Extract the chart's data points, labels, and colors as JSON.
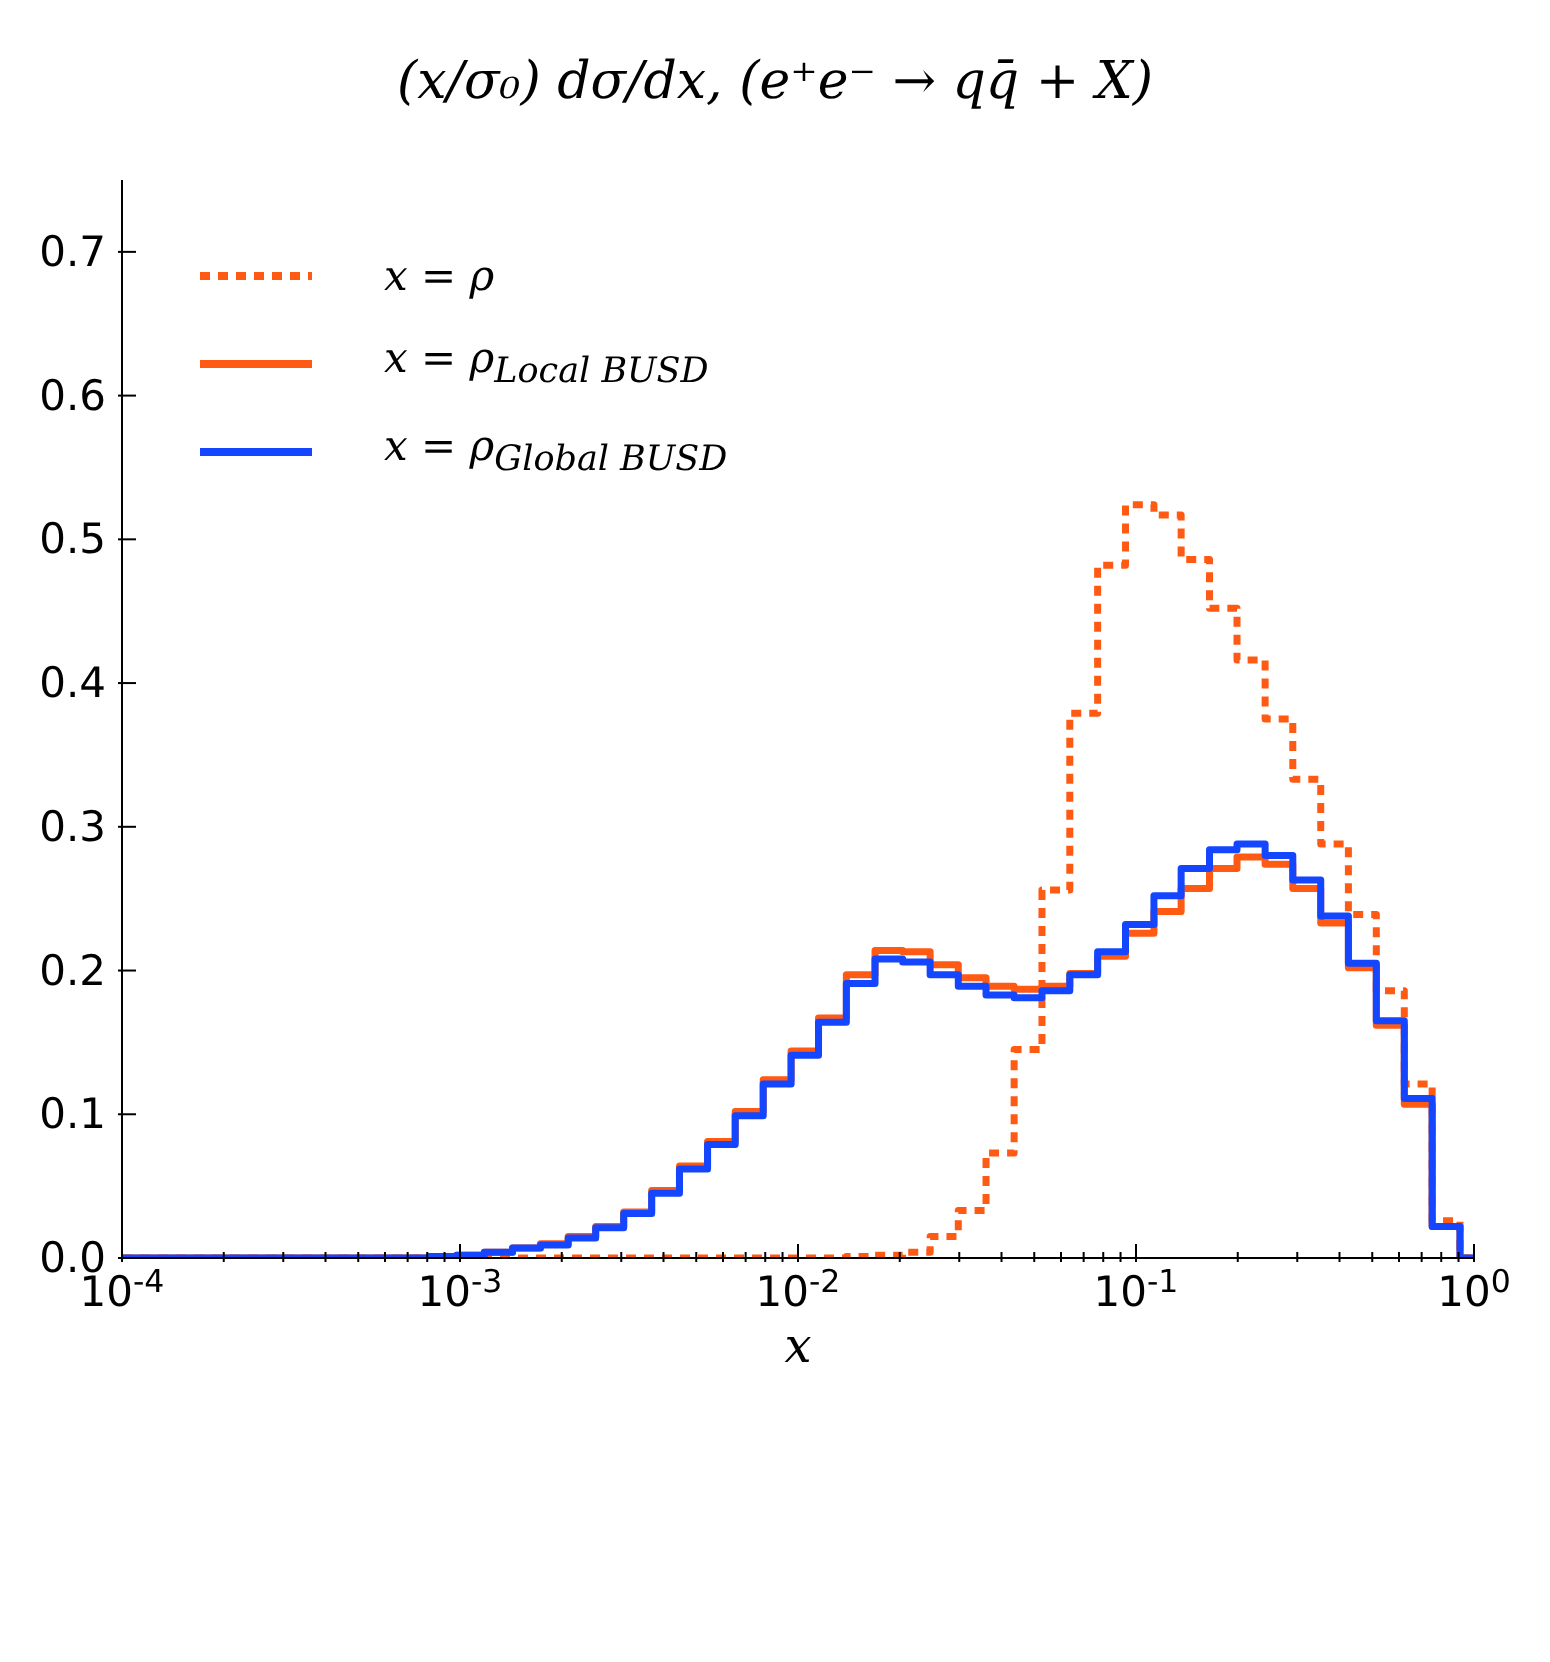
{
  "chart_data": {
    "type": "histogram",
    "title": "(x/σ₀) dσ/dx, (e⁺e⁻ → qq̄ + X)",
    "xlabel": "x",
    "log": "x",
    "bins": [
      0.0001,
      0.000121,
      0.000146,
      0.000177,
      0.000214,
      0.000259,
      0.000313,
      0.000378,
      0.000457,
      0.000553,
      0.000668,
      0.000808,
      0.000977,
      0.00118,
      0.00143,
      0.00173,
      0.00209,
      0.00252,
      0.00305,
      0.00369,
      0.00446,
      0.0054,
      0.00652,
      0.00789,
      0.00954,
      0.0115,
      0.0139,
      0.0169,
      0.0204,
      0.0246,
      0.0298,
      0.036,
      0.0436,
      0.0527,
      0.0637,
      0.077,
      0.0931,
      0.113,
      0.136,
      0.165,
      0.199,
      0.241,
      0.291,
      0.352,
      0.425,
      0.514,
      0.622,
      0.752,
      0.909,
      1
    ],
    "series": [
      {
        "name": "x = ρ",
        "color": "#ff5a14",
        "line_style": "dotted",
        "values": [
          0,
          0,
          0,
          0,
          0,
          0,
          0,
          0,
          0,
          0,
          0,
          0,
          0,
          0,
          0,
          0,
          0,
          0,
          0,
          0,
          0,
          0,
          0,
          0,
          0,
          0,
          0.001,
          0.002,
          0.004,
          0.015,
          0.033,
          0.073,
          0.145,
          0.256,
          0.379,
          0.482,
          0.524,
          0.517,
          0.486,
          0.452,
          0.416,
          0.375,
          0.333,
          0.288,
          0.239,
          0.186,
          0.121,
          0.026,
          0
        ]
      },
      {
        "name": "x = ρ$_{Local BUSD}$",
        "color": "#ff5a14",
        "line_style": "solid",
        "values": [
          0,
          0,
          0,
          0,
          0,
          0,
          0,
          0,
          0,
          0,
          0,
          0.001,
          0.002,
          0.004,
          0.007,
          0.01,
          0.015,
          0.022,
          0.032,
          0.047,
          0.064,
          0.081,
          0.102,
          0.124,
          0.144,
          0.167,
          0.197,
          0.214,
          0.213,
          0.204,
          0.195,
          0.189,
          0.187,
          0.189,
          0.198,
          0.21,
          0.226,
          0.241,
          0.257,
          0.271,
          0.279,
          0.274,
          0.257,
          0.233,
          0.202,
          0.162,
          0.107,
          0.022,
          0
        ]
      },
      {
        "name": "x = ρ$_{Global BUSD}$",
        "color": "#1446ff",
        "line_style": "solid",
        "values": [
          0,
          0,
          0,
          0,
          0,
          0,
          0,
          0,
          0,
          0,
          0,
          0.001,
          0.002,
          0.004,
          0.007,
          0.009,
          0.014,
          0.021,
          0.031,
          0.045,
          0.062,
          0.079,
          0.099,
          0.121,
          0.141,
          0.164,
          0.191,
          0.208,
          0.206,
          0.197,
          0.189,
          0.183,
          0.181,
          0.186,
          0.197,
          0.213,
          0.232,
          0.252,
          0.271,
          0.284,
          0.288,
          0.28,
          0.263,
          0.238,
          0.205,
          0.165,
          0.111,
          0.022,
          0
        ]
      }
    ],
    "xlim": [
      0.0001,
      1
    ],
    "xticks": [
      {
        "value": 0.0001,
        "label": "10$^{-4}$"
      },
      {
        "value": 0.0002,
        "label": null
      },
      {
        "value": 0.0003,
        "label": null
      },
      {
        "value": 0.0004,
        "label": null
      },
      {
        "value": 0.0005,
        "label": null
      },
      {
        "value": 0.0006,
        "label": null
      },
      {
        "value": 0.0007,
        "label": null
      },
      {
        "value": 0.0008,
        "label": null
      },
      {
        "value": 0.0009,
        "label": null
      },
      {
        "value": 0.001,
        "label": "10$^{-3}$"
      },
      {
        "value": 0.002,
        "label": null
      },
      {
        "value": 0.003,
        "label": null
      },
      {
        "value": 0.004,
        "label": null
      },
      {
        "value": 0.005,
        "label": null
      },
      {
        "value": 0.006,
        "label": null
      },
      {
        "value": 0.007,
        "label": null
      },
      {
        "value": 0.008,
        "label": null
      },
      {
        "value": 0.009,
        "label": null
      },
      {
        "value": 0.01,
        "label": "10$^{-2}$"
      },
      {
        "value": 0.02,
        "label": null
      },
      {
        "value": 0.03,
        "label": null
      },
      {
        "value": 0.04,
        "label": null
      },
      {
        "value": 0.05,
        "label": null
      },
      {
        "value": 0.06,
        "label": null
      },
      {
        "value": 0.07,
        "label": null
      },
      {
        "value": 0.08,
        "label": null
      },
      {
        "value": 0.09,
        "label": null
      },
      {
        "value": 0.1,
        "label": "10$^{-1}$"
      },
      {
        "value": 0.2,
        "label": null
      },
      {
        "value": 0.3,
        "label": null
      },
      {
        "value": 0.4,
        "label": null
      },
      {
        "value": 0.5,
        "label": null
      },
      {
        "value": 0.6,
        "label": null
      },
      {
        "value": 0.7,
        "label": null
      },
      {
        "value": 0.8,
        "label": null
      },
      {
        "value": 0.9,
        "label": null
      },
      {
        "value": 1,
        "label": "10$^{0}$"
      }
    ],
    "ylim": [
      0,
      0.75
    ],
    "yticks": [
      {
        "value": 0,
        "label": "0.0"
      },
      {
        "value": 0.1,
        "label": "0.1"
      },
      {
        "value": 0.2,
        "label": "0.2"
      },
      {
        "value": 0.3,
        "label": "0.3"
      },
      {
        "value": 0.4,
        "label": "0.4"
      },
      {
        "value": 0.5,
        "label": "0.5"
      },
      {
        "value": 0.6,
        "label": "0.6"
      },
      {
        "value": 0.7,
        "label": "0.7"
      }
    ],
    "legend": "top left"
  }
}
